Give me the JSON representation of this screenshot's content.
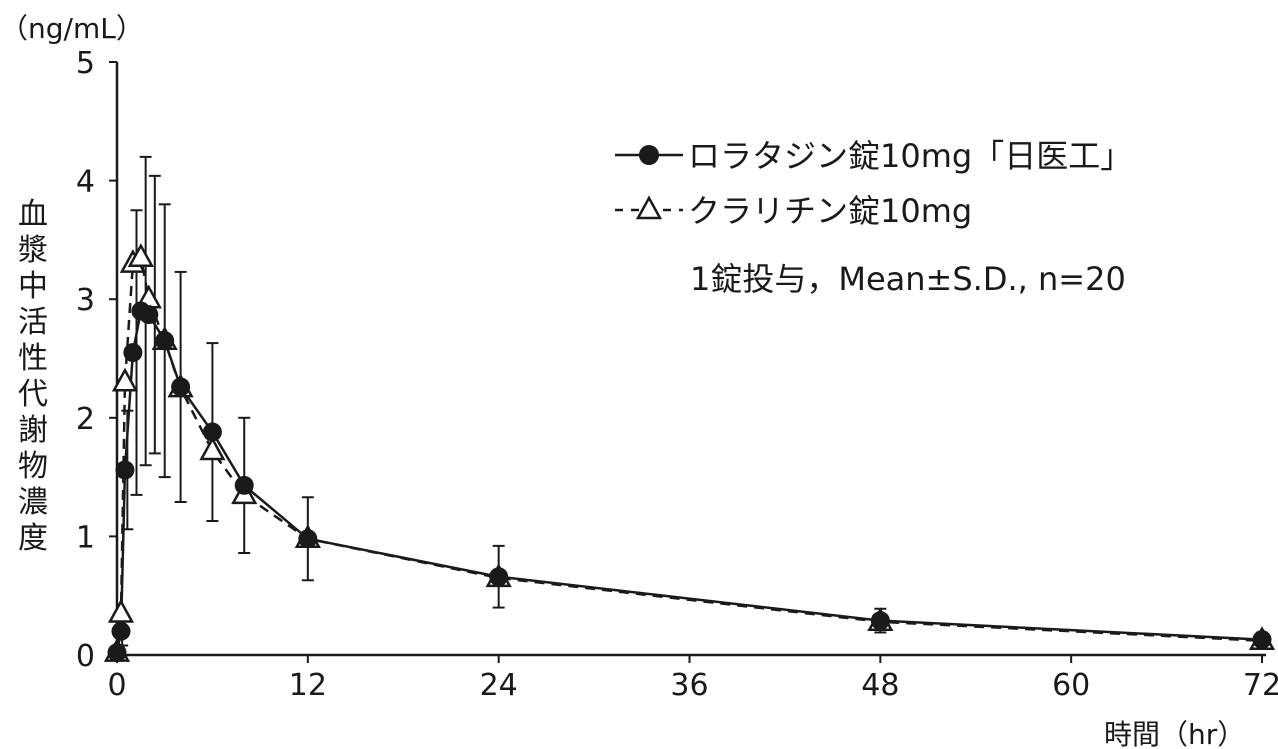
{
  "chart_data": {
    "type": "line",
    "unit_label": "（ng/mL）",
    "ylabel": "血漿中活性代謝物濃度",
    "xlabel": "時間（hr）",
    "xlim": [
      0,
      72
    ],
    "ylim": [
      0,
      5
    ],
    "xticks": [
      0,
      12,
      24,
      36,
      48,
      60,
      72
    ],
    "yticks": [
      0,
      1,
      2,
      3,
      4,
      5
    ],
    "grid": false,
    "legend_placement": "top-right",
    "note": "1錠投与，Mean±S.D., n=20",
    "x": [
      0,
      0.25,
      0.5,
      1,
      1.5,
      2,
      3,
      4,
      6,
      8,
      12,
      24,
      48,
      72
    ],
    "series": [
      {
        "name": "ロラタジン錠10mg「日医工」",
        "marker": "filled-circle",
        "line": "solid",
        "values": [
          0.02,
          0.2,
          1.56,
          2.55,
          2.9,
          2.87,
          2.65,
          2.26,
          1.88,
          1.43,
          0.98,
          0.66,
          0.29,
          0.13
        ],
        "sd": [
          0,
          0.12,
          0.5,
          1.2,
          1.3,
          1.17,
          1.15,
          0.97,
          0.75,
          0.57,
          0.35,
          0.26,
          0.1,
          0.05
        ]
      },
      {
        "name": "クラリチン錠10mg",
        "marker": "open-triangle",
        "line": "dashed",
        "values": [
          0.02,
          0.35,
          2.3,
          3.3,
          3.35,
          3.0,
          2.65,
          2.25,
          1.72,
          1.35,
          0.98,
          0.65,
          0.28,
          0.12
        ]
      }
    ]
  }
}
